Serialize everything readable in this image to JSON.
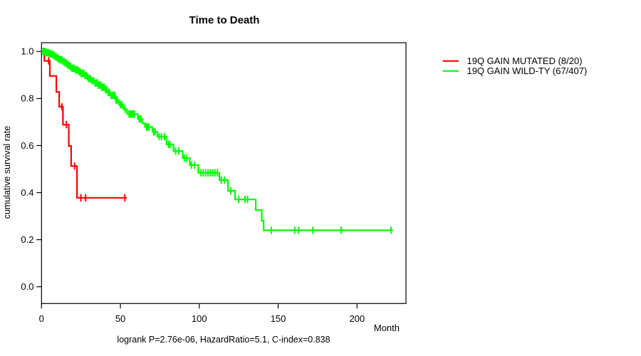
{
  "page": {
    "background": "#ffffff",
    "text_color": "#000000",
    "axis_color": "#000000"
  },
  "chart_data": {
    "type": "line",
    "variant": "kaplan-meier-step",
    "title": "Time to Death",
    "xlabel": "Month",
    "ylabel": "cumulative survival rate",
    "footer": "logrank P=2.76e-06, HazardRatio=5.1, C-index=0.838",
    "x_ticks": [
      0,
      50,
      100,
      150,
      200
    ],
    "y_ticks": [
      "0.0",
      "0.2",
      "0.4",
      "0.6",
      "0.8",
      "1.0"
    ],
    "xlim": [
      0,
      231
    ],
    "ylim": [
      0,
      1.04
    ],
    "grid": false,
    "legend_position": "outside-right",
    "series": [
      {
        "name": "19Q GAIN MUTATED (8/20)",
        "color": "#ff0000",
        "end_month": 54,
        "steps": [
          [
            0,
            1.0
          ],
          [
            1.8,
            0.96
          ],
          [
            5.3,
            0.896
          ],
          [
            9.4,
            0.828
          ],
          [
            11.2,
            0.765
          ],
          [
            13.6,
            0.689
          ],
          [
            17.3,
            0.598
          ],
          [
            18.8,
            0.513
          ],
          [
            22.5,
            0.378
          ]
        ],
        "censor_months": [
          4.5,
          12.9,
          15.8,
          21,
          24.9,
          27.9,
          52.8
        ]
      },
      {
        "name": "19Q GAIN WILD-TY (67/407)",
        "color": "#00ff00",
        "end_month": 223,
        "steps": [
          [
            0,
            1.0
          ],
          [
            3,
            0.995
          ],
          [
            5,
            0.99
          ],
          [
            7,
            0.985
          ],
          [
            8.5,
            0.978
          ],
          [
            10,
            0.971
          ],
          [
            11.5,
            0.965
          ],
          [
            13,
            0.958
          ],
          [
            14.5,
            0.951
          ],
          [
            16,
            0.944
          ],
          [
            17.5,
            0.937
          ],
          [
            19,
            0.929
          ],
          [
            21,
            0.922
          ],
          [
            23,
            0.915
          ],
          [
            25,
            0.907
          ],
          [
            27,
            0.898
          ],
          [
            28.5,
            0.891
          ],
          [
            30,
            0.884
          ],
          [
            32,
            0.876
          ],
          [
            34,
            0.866
          ],
          [
            36,
            0.857
          ],
          [
            38,
            0.848
          ],
          [
            40,
            0.838
          ],
          [
            42,
            0.826
          ],
          [
            43.8,
            0.814
          ],
          [
            46.8,
            0.794
          ],
          [
            49,
            0.774
          ],
          [
            52,
            0.754
          ],
          [
            54.3,
            0.734
          ],
          [
            61,
            0.713
          ],
          [
            64,
            0.694
          ],
          [
            65.6,
            0.679
          ],
          [
            70.3,
            0.659
          ],
          [
            73.4,
            0.638
          ],
          [
            79.2,
            0.605
          ],
          [
            83.7,
            0.577
          ],
          [
            89.5,
            0.547
          ],
          [
            94,
            0.517
          ],
          [
            99.4,
            0.484
          ],
          [
            112.8,
            0.453
          ],
          [
            118.2,
            0.408
          ],
          [
            122.7,
            0.371
          ],
          [
            135.8,
            0.326
          ],
          [
            139.6,
            0.281
          ],
          [
            140.8,
            0.24
          ]
        ],
        "censor_months": [
          1,
          1.7,
          2.4,
          3.1,
          3.8,
          4.5,
          5.2,
          5.9,
          6.6,
          7.3,
          8,
          8.7,
          9.4,
          10.1,
          10.8,
          11.5,
          12.2,
          12.9,
          13.6,
          14.3,
          15,
          15.7,
          16.4,
          17.1,
          17.8,
          18.5,
          19.2,
          20,
          20.7,
          21.4,
          22.1,
          22.9,
          23.6,
          24.4,
          25.2,
          26,
          26.8,
          27.6,
          28.4,
          29.2,
          30.1,
          31,
          32,
          33,
          34,
          34.7,
          35.4,
          36.1,
          36.8,
          37.5,
          38.2,
          39,
          39.8,
          40.6,
          41.4,
          42.2,
          43,
          44,
          45,
          45.7,
          46.4,
          47.2,
          48,
          50,
          51,
          53,
          55.5,
          56.3,
          57.1,
          58,
          59,
          62,
          63,
          66.5,
          67.3,
          68.1,
          71,
          72,
          74.5,
          76,
          78,
          80.5,
          81.5,
          85,
          87,
          90.5,
          92,
          95,
          97,
          101,
          102.5,
          104,
          105.5,
          107,
          108.5,
          110,
          111.5,
          114,
          116,
          120,
          125,
          129,
          130.6,
          145.7,
          160.5,
          163,
          172,
          190,
          221.5
        ]
      }
    ]
  }
}
